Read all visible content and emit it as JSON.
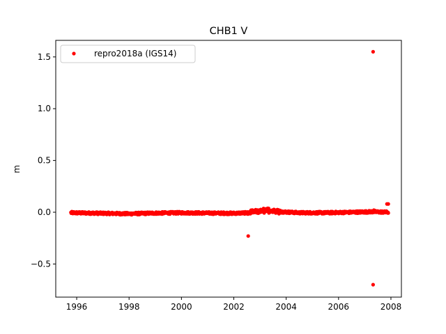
{
  "chart_data": {
    "type": "scatter",
    "title": "CHB1 V",
    "xlabel": "",
    "ylabel": "m",
    "xlim": [
      1995.2,
      2008.4
    ],
    "ylim": [
      -0.82,
      1.66
    ],
    "x_ticks": [
      1996,
      1998,
      2000,
      2002,
      2004,
      2006,
      2008
    ],
    "x_tick_labels": [
      "1996",
      "1998",
      "2000",
      "2002",
      "2004",
      "2006",
      "2008"
    ],
    "y_ticks": [
      -0.5,
      0.0,
      0.5,
      1.0,
      1.5
    ],
    "y_tick_labels": [
      "−0.5",
      "0.0",
      "0.5",
      "1.0",
      "1.5"
    ],
    "grid": false,
    "legend": {
      "placement": "top-left"
    },
    "colors": {
      "series": "#ff0000"
    },
    "series": [
      {
        "name": "repro2018a (IGS14)",
        "marker": "point",
        "x_range": [
          1995.78,
          2007.9
        ],
        "baseline_profile": [
          [
            1995.78,
            -0.005
          ],
          [
            1997.0,
            -0.01
          ],
          [
            1998.0,
            -0.015
          ],
          [
            1999.0,
            -0.008
          ],
          [
            2000.0,
            -0.005
          ],
          [
            2001.0,
            -0.008
          ],
          [
            2002.0,
            -0.01
          ],
          [
            2002.6,
            -0.005
          ],
          [
            2003.3,
            0.02
          ],
          [
            2003.8,
            0.005
          ],
          [
            2004.5,
            -0.005
          ],
          [
            2005.5,
            -0.005
          ],
          [
            2006.5,
            0.0
          ],
          [
            2007.3,
            0.005
          ],
          [
            2007.9,
            0.0
          ]
        ],
        "outliers": [
          {
            "x": 2002.55,
            "y": -0.23
          },
          {
            "x": 2007.32,
            "y": 1.55
          },
          {
            "x": 2007.32,
            "y": -0.7
          },
          {
            "x": 2007.35,
            "y": 0.02
          },
          {
            "x": 2007.85,
            "y": 0.08
          },
          {
            "x": 2007.9,
            "y": 0.08
          }
        ]
      }
    ]
  }
}
